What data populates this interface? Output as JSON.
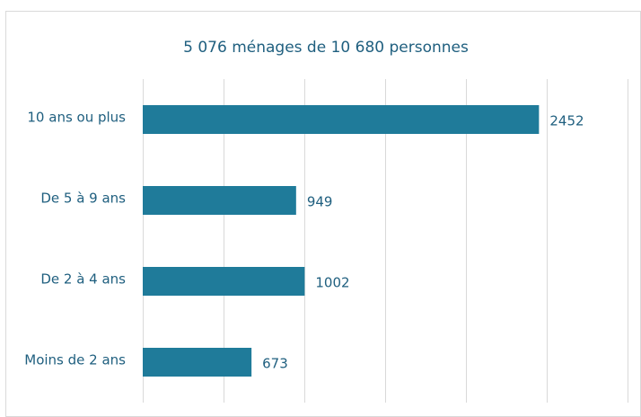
{
  "chart_data": {
    "type": "barh",
    "title": "5 076 ménages de 10 680 personnes",
    "categories": [
      "10 ans ou plus",
      "De 5 à 9 ans",
      "De 2 à 4 ans",
      "Moins de 2 ans"
    ],
    "values": [
      2452,
      949,
      1002,
      673
    ],
    "color": "#1f7b9a",
    "xlim": [
      0,
      3000
    ],
    "xticks": [
      0,
      500,
      1000,
      1500,
      2000,
      2500,
      3000
    ],
    "grid": true
  }
}
